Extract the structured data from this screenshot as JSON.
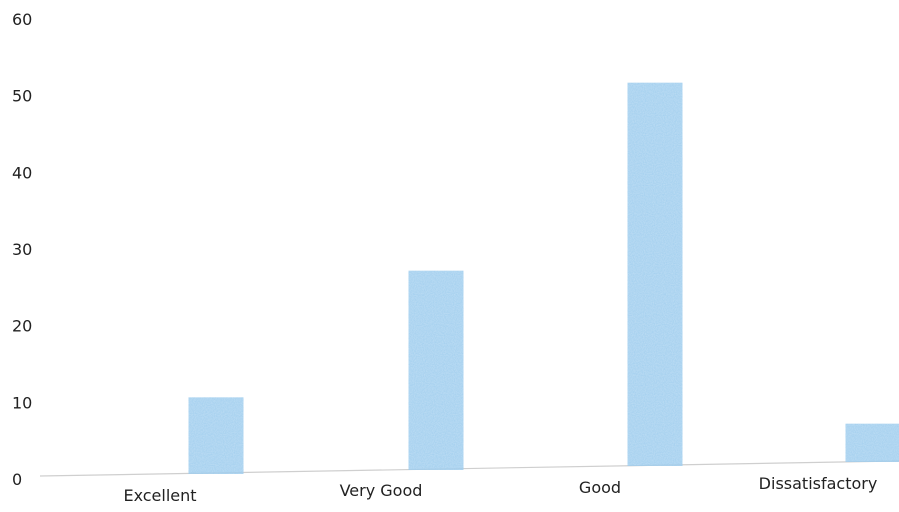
{
  "chart_data": {
    "type": "bar",
    "title": "",
    "xlabel": "",
    "ylabel": "",
    "categories": [
      "Excellent",
      "Very Good",
      "Good",
      "Dissatisfactory"
    ],
    "values": [
      10,
      26,
      50,
      5
    ],
    "ylim": [
      0,
      60
    ],
    "yticks": [
      "0",
      "10",
      "20",
      "30",
      "40",
      "50",
      "60"
    ],
    "grid": false,
    "legend": "none",
    "bar_color": "#9fcdee",
    "axis_color": "#cfcfcf"
  }
}
